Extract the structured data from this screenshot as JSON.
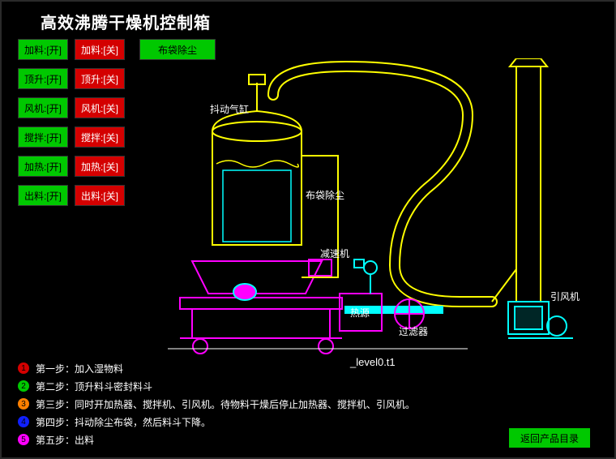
{
  "title": "高效沸腾干燥机控制箱",
  "colors": {
    "yellow": "#ffff00",
    "magenta": "#ff00ff",
    "cyan": "#00ffff",
    "green": "#00c800",
    "red": "#d40000",
    "blue": "#1020ff",
    "orange": "#ff8000",
    "white": "#ffffff"
  },
  "buttons": {
    "row1_on": "加料:[开]",
    "row1_off": "加料:[关]",
    "row2_on": "顶升:[开]",
    "row2_off": "顶升:[关]",
    "row3_on": "风机:[开]",
    "row3_off": "风机:[关]",
    "row4_on": "搅拌:[开]",
    "row4_off": "搅拌:[关]",
    "row5_on": "加热:[开]",
    "row5_off": "加热:[关]",
    "row6_on": "出料:[开]",
    "row6_off": "出料:[关]",
    "wide": "布袋除尘"
  },
  "labels": {
    "cylinder": "抖动气缸",
    "bagfilter": "布袋除尘",
    "reducer": "减速机",
    "heat": "热源",
    "filter": "过滤器",
    "fan": "引风机"
  },
  "level_tag": "_level0.t1",
  "steps": [
    {
      "n": "1",
      "color": "#d40000",
      "text": "第一步：加入湿物料"
    },
    {
      "n": "2",
      "color": "#00c800",
      "text": "第二步：顶升料斗密封料斗"
    },
    {
      "n": "3",
      "color": "#ff8000",
      "text": "第三步：同时开加热器、搅拌机、引风机。待物料干燥后停止加热器、搅拌机、引风机。"
    },
    {
      "n": "4",
      "color": "#1020ff",
      "text": "第四步：抖动除尘布袋，然后料斗下降。"
    },
    {
      "n": "5",
      "color": "#ff00ff",
      "text": "第五步：出料"
    }
  ],
  "return_label": "返回产品目录"
}
